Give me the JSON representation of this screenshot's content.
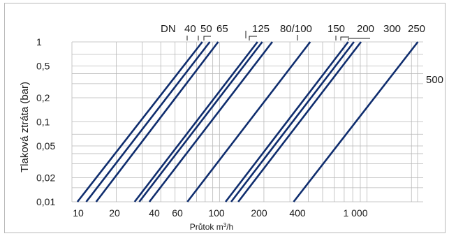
{
  "chart_data": {
    "type": "line",
    "xlabel": "Průtok m³/h",
    "ylabel": "Tlaková ztráta (bar)",
    "x_scale": "log",
    "y_scale": "log",
    "xlim": [
      10,
      2200
    ],
    "ylim": [
      0.01,
      1
    ],
    "x_ticks": [
      10,
      20,
      40,
      60,
      100,
      200,
      400,
      1000
    ],
    "x_tick_labels": [
      "10",
      "20",
      "40",
      "60",
      "100",
      "200",
      "400",
      "1 000"
    ],
    "y_ticks": [
      0.01,
      0.02,
      0.05,
      0.1,
      0.2,
      0.5,
      1
    ],
    "y_tick_labels": [
      "0,01",
      "0,02",
      "0,05",
      "0,1",
      "0,2",
      "0,5",
      "1"
    ],
    "grid": true,
    "line_color": "#0f2d6e",
    "dn_label": "DN",
    "series": [
      {
        "name": "40",
        "x": [
          10.9,
          76.5
        ]
      },
      {
        "name": "50",
        "x": [
          12.5,
          86
        ]
      },
      {
        "name": "65",
        "x": [
          14.6,
          98
        ]
      },
      {
        "name": "125",
        "x": [
          26.6,
          181
        ]
      },
      {
        "name": "80",
        "x": [
          28.6,
          195
        ]
      },
      {
        "name": "100",
        "x": [
          33.5,
          228
        ]
      },
      {
        "name": "150",
        "x": [
          60.6,
          412
        ]
      },
      {
        "name": "200",
        "x": [
          110,
          745
        ]
      },
      {
        "name": "300",
        "x": [
          120,
          815
        ]
      },
      {
        "name": "250",
        "x": [
          134,
          910
        ]
      },
      {
        "name": "500",
        "x": [
          318,
          2210
        ]
      }
    ],
    "series_y": [
      0.01,
      1
    ],
    "top_labels": [
      "DN",
      "40",
      "50",
      "65",
      "125",
      "80/100",
      "150",
      "200",
      "300",
      "250"
    ],
    "side_labels": [
      "500"
    ]
  }
}
